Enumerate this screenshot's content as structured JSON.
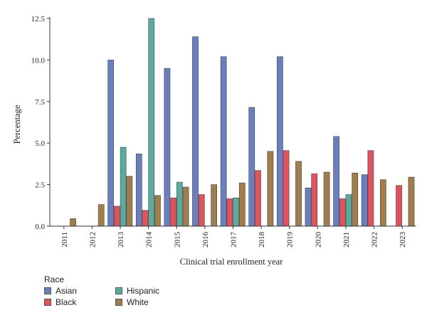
{
  "chart_data": {
    "type": "bar",
    "title": "",
    "xlabel": "Clinical trial enrollment year",
    "ylabel": "Percentage",
    "ylim": [
      0,
      12.5
    ],
    "yticks": [
      "0.0",
      "2.5",
      "5.0",
      "7.5",
      "10.0",
      "12.5"
    ],
    "categories": [
      "2011",
      "2012",
      "2013",
      "2014",
      "2015",
      "2016",
      "2017",
      "2018",
      "2019",
      "2020",
      "2021",
      "2022",
      "2023"
    ],
    "legend_title": "Race",
    "legend_position": "bottom-left",
    "grid": false,
    "series": [
      {
        "name": "Asian",
        "color": "#6b7fbf",
        "values": [
          0,
          0,
          10.0,
          4.35,
          9.5,
          11.4,
          10.2,
          7.15,
          10.2,
          2.3,
          5.4,
          3.1,
          0
        ]
      },
      {
        "name": "Black",
        "color": "#e0535d",
        "values": [
          0,
          0,
          1.2,
          0.95,
          1.7,
          1.9,
          1.65,
          3.35,
          4.55,
          3.15,
          1.65,
          4.55,
          2.45
        ]
      },
      {
        "name": "Hispanic",
        "color": "#5aab9e",
        "values": [
          0,
          0,
          4.75,
          12.5,
          2.65,
          0,
          1.7,
          0,
          0,
          0,
          1.9,
          0,
          0
        ]
      },
      {
        "name": "White",
        "color": "#a07d4c",
        "values": [
          0.45,
          1.3,
          3.0,
          1.85,
          2.35,
          2.5,
          2.6,
          4.5,
          3.9,
          3.25,
          3.2,
          2.8,
          2.95
        ]
      }
    ]
  }
}
